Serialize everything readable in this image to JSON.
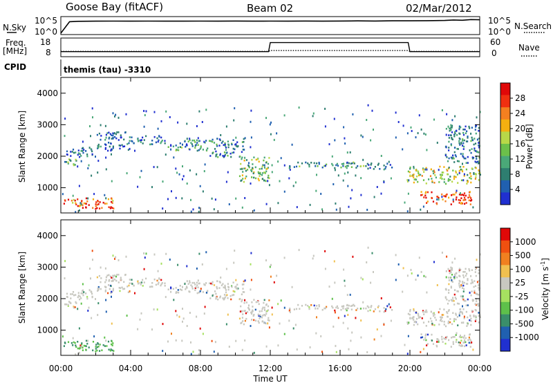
{
  "header": {
    "station": "Goose Bay (fitACF)",
    "beam": "Beam 02",
    "date": "02/Mar/2012"
  },
  "top_panels": {
    "nsky_label": "N.Sky",
    "nsky_ticks": [
      "10^5",
      "10^0"
    ],
    "nsearch_label": "N.Search",
    "nsearch_ticks": [
      "10^5",
      "10^0"
    ],
    "freq_label_1": "Freq.",
    "freq_label_2": "[MHz]",
    "freq_ticks": [
      "18",
      "8"
    ],
    "nave_label": "Nave",
    "nave_ticks": [
      "60",
      "0"
    ],
    "cpid_label": "CPID",
    "program": "themis (tau) -3310"
  },
  "chart_data": [
    {
      "type": "line",
      "name": "nsky",
      "note_scale": "log",
      "x": [
        0,
        0.5,
        1,
        2,
        3,
        4,
        5,
        6,
        7,
        8,
        9,
        10,
        11,
        12,
        13,
        14,
        15,
        16,
        17,
        18,
        19,
        20,
        21,
        22,
        22.5,
        23,
        23.5,
        24
      ],
      "values": [
        1,
        6000,
        8000,
        9000,
        9500,
        9000,
        9500,
        9000,
        9000,
        9500,
        9000,
        10000,
        9000,
        9500,
        9000,
        10000,
        9000,
        10000,
        11000,
        10000,
        12000,
        12000,
        13000,
        15000,
        22000,
        18000,
        30000,
        25000
      ],
      "ylim": [
        1,
        100000
      ]
    },
    {
      "type": "line",
      "name": "frequency",
      "x": [
        0,
        11.9,
        12.0,
        19.9,
        20.0,
        24
      ],
      "values": [
        10.3,
        10.3,
        16.0,
        16.0,
        10.3,
        10.3
      ],
      "ylim": [
        8,
        18
      ]
    },
    {
      "type": "line",
      "name": "nave",
      "x": [
        0,
        11.9,
        12.0,
        19.9,
        20.0,
        24
      ],
      "values": [
        15,
        15,
        18,
        18,
        15,
        15
      ],
      "ylim": [
        0,
        60
      ]
    },
    {
      "type": "heatmap",
      "name": "power",
      "xlabel": "",
      "ylabel": "Slant Range [km]",
      "x_ticks": [
        "00:00",
        "04:00",
        "08:00",
        "12:00",
        "16:00",
        "20:00",
        "00:00"
      ],
      "y_ticks": [
        "1000",
        "2000",
        "3000",
        "4000"
      ],
      "xlim": [
        0,
        24
      ],
      "ylim": [
        200,
        4500
      ],
      "colorbar": {
        "label": "Power [dB]",
        "ticks": [
          "28",
          "24",
          "20",
          "16",
          "12",
          "8",
          "4"
        ],
        "colors": [
          "#2030d0",
          "#2060b0",
          "#2e7e70",
          "#4aa878",
          "#6cc04a",
          "#b8d848",
          "#f4b010",
          "#f48020",
          "#f03010",
          "#e00808"
        ]
      },
      "echo_bands": [
        {
          "t0": 0.1,
          "t1": 1.0,
          "r0": 1700,
          "r1": 1950,
          "level": 0.35
        },
        {
          "t0": 0.3,
          "t1": 2.0,
          "r0": 2000,
          "r1": 2300,
          "level": 0.15
        },
        {
          "t0": 2.0,
          "t1": 4.0,
          "r0": 2200,
          "r1": 2800,
          "level": 0.15
        },
        {
          "t0": 4.0,
          "t1": 6.0,
          "r0": 2400,
          "r1": 2700,
          "level": 0.2
        },
        {
          "t0": 6.0,
          "t1": 8.5,
          "r0": 2200,
          "r1": 2550,
          "level": 0.3
        },
        {
          "t0": 8.5,
          "t1": 10.5,
          "r0": 2000,
          "r1": 2600,
          "level": 0.25
        },
        {
          "t0": 10.2,
          "t1": 11.9,
          "r0": 1200,
          "r1": 2000,
          "level": 0.45
        },
        {
          "t0": 13.0,
          "t1": 17.5,
          "r0": 1650,
          "r1": 1850,
          "level": 0.3
        },
        {
          "t0": 17.5,
          "t1": 19.0,
          "r0": 1600,
          "r1": 1800,
          "level": 0.15
        },
        {
          "t0": 19.8,
          "t1": 24.0,
          "r0": 1150,
          "r1": 1700,
          "level": 0.5
        },
        {
          "t0": 20.5,
          "t1": 23.5,
          "r0": 500,
          "r1": 900,
          "level": 0.85
        },
        {
          "t0": 0.1,
          "t1": 3.0,
          "r0": 350,
          "r1": 700,
          "level": 0.8
        },
        {
          "t0": 22.0,
          "t1": 24.0,
          "r0": 1800,
          "r1": 3000,
          "level": 0.2
        }
      ]
    },
    {
      "type": "heatmap",
      "name": "velocity",
      "xlabel": "Time UT",
      "ylabel": "Slant Range [km]",
      "x_ticks": [
        "00:00",
        "04:00",
        "08:00",
        "12:00",
        "16:00",
        "20:00",
        "00:00"
      ],
      "y_ticks": [
        "1000",
        "2000",
        "3000",
        "4000"
      ],
      "xlim": [
        0,
        24
      ],
      "ylim": [
        200,
        4500
      ],
      "colorbar": {
        "label": "Velocity [m s",
        "label_sup": "-1",
        "label_close": "]",
        "ticks": [
          "1000",
          "500",
          "100",
          "25",
          "-25",
          "-100",
          "-500",
          "-1000"
        ],
        "colors": [
          "#2030d0",
          "#2060b0",
          "#3a8e6a",
          "#5ec04a",
          "#a6e060",
          "#c8c8c0",
          "#f0c050",
          "#f08020",
          "#f05010",
          "#e00808"
        ]
      }
    }
  ]
}
